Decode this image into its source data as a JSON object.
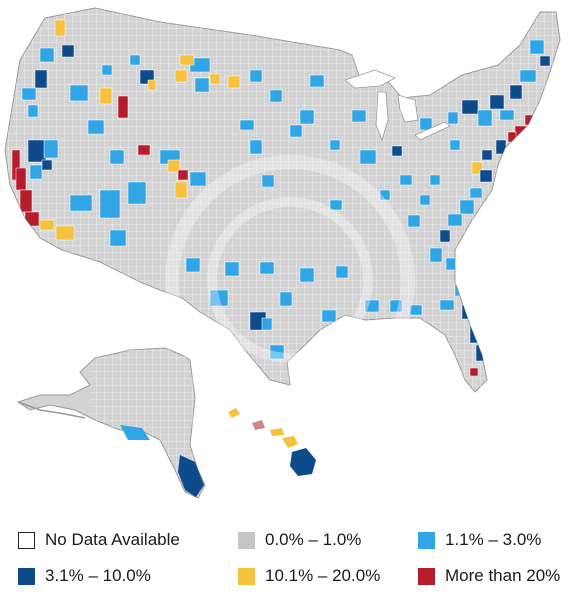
{
  "legend": {
    "items": [
      {
        "label": "No Data Available",
        "color": "#ffffff",
        "stroke": "#222222"
      },
      {
        "label": "0.0% – 1.0%",
        "color": "#c6c6c6"
      },
      {
        "label": "1.1% – 3.0%",
        "color": "#30a6e6"
      },
      {
        "label": "3.1% – 10.0%",
        "color": "#0d4b8a"
      },
      {
        "label": "10.1% – 20.0%",
        "color": "#f7c140"
      },
      {
        "label": "More than 20%",
        "color": "#b71c2c"
      }
    ]
  },
  "map": {
    "regions": [
      "contiguous-us",
      "alaska",
      "hawaii"
    ],
    "base_color": "#d3d3d3",
    "county_line_color": "#ffffff",
    "watermark": "circular-logo"
  }
}
